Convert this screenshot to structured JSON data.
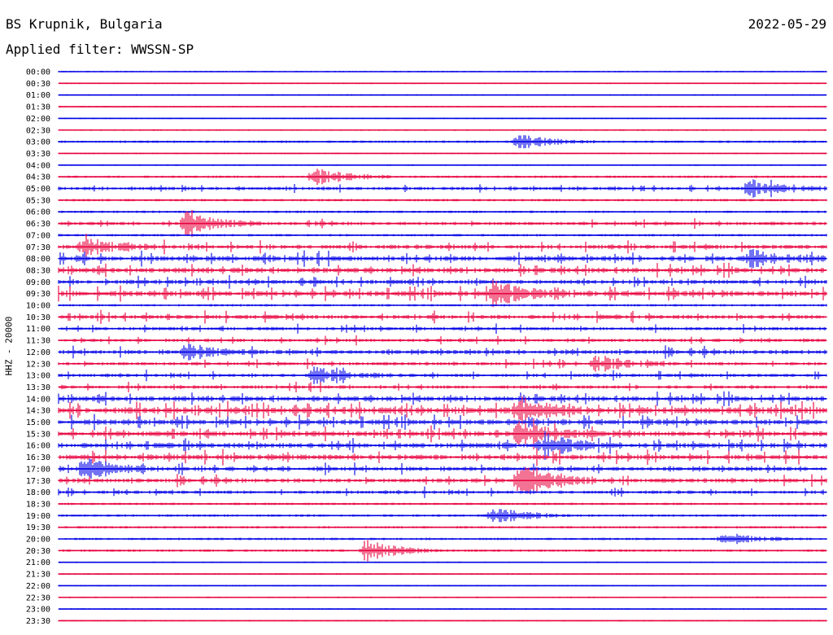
{
  "header": {
    "station": "BS Krupnik, Bulgaria",
    "filter": "Applied filter: WWSSN-SP",
    "date": "2022-05-29"
  },
  "channel_label": "HHZ - 20000",
  "colors": {
    "blue": "#0000e6",
    "red": "#e8003c"
  },
  "chart_data": {
    "type": "helicorder",
    "title": "BS Krupnik, Bulgaria",
    "date": "2022-05-29",
    "filter": "WWSSN-SP",
    "ylabel": "HHZ - 20000",
    "row_interval_minutes": 30,
    "row_labels": [
      "00:00",
      "00:30",
      "01:00",
      "01:30",
      "02:00",
      "02:30",
      "03:00",
      "03:30",
      "04:00",
      "04:30",
      "05:00",
      "05:30",
      "06:00",
      "06:30",
      "07:00",
      "07:30",
      "08:00",
      "08:30",
      "09:00",
      "09:30",
      "10:00",
      "10:30",
      "11:00",
      "11:30",
      "12:00",
      "12:30",
      "13:00",
      "13:30",
      "14:00",
      "14:30",
      "15:00",
      "15:30",
      "16:00",
      "16:30",
      "17:00",
      "17:30",
      "18:00",
      "18:30",
      "19:00",
      "19:30",
      "20:00",
      "20:30",
      "21:00",
      "21:30",
      "22:00",
      "22:30",
      "23:00",
      "23:30"
    ],
    "row_activity": [
      1,
      1,
      1,
      1,
      1,
      1,
      2,
      1,
      1,
      2,
      3,
      2,
      2,
      3,
      2,
      4,
      5,
      5,
      4,
      5,
      2,
      4,
      3,
      3,
      4,
      3,
      3,
      3,
      5,
      6,
      5,
      5,
      5,
      5,
      4,
      4,
      3,
      2,
      2,
      2,
      2,
      2,
      1,
      1,
      1,
      1,
      1,
      1
    ],
    "events": [
      {
        "time": "03:00",
        "minute": 18,
        "amplitude": 4
      },
      {
        "time": "04:30",
        "minute": 10,
        "amplitude": 5
      },
      {
        "time": "05:00",
        "minute": 27,
        "amplitude": 5
      },
      {
        "time": "06:30",
        "minute": 5,
        "amplitude": 7
      },
      {
        "time": "07:30",
        "minute": 1,
        "amplitude": 5
      },
      {
        "time": "08:00",
        "minute": 27,
        "amplitude": 5
      },
      {
        "time": "09:30",
        "minute": 17,
        "amplitude": 7
      },
      {
        "time": "12:00",
        "minute": 5,
        "amplitude": 4
      },
      {
        "time": "12:30",
        "minute": 21,
        "amplitude": 4
      },
      {
        "time": "13:00",
        "minute": 10,
        "amplitude": 5
      },
      {
        "time": "14:30",
        "minute": 18,
        "amplitude": 7
      },
      {
        "time": "15:30",
        "minute": 18,
        "amplitude": 7
      },
      {
        "time": "16:00",
        "minute": 19,
        "amplitude": 6
      },
      {
        "time": "17:00",
        "minute": 1,
        "amplitude": 6
      },
      {
        "time": "17:30",
        "minute": 18,
        "amplitude": 9
      },
      {
        "time": "19:00",
        "minute": 17,
        "amplitude": 5
      },
      {
        "time": "20:00",
        "minute": 26,
        "amplitude": 4
      },
      {
        "time": "20:30",
        "minute": 12,
        "amplitude": 6
      }
    ]
  }
}
